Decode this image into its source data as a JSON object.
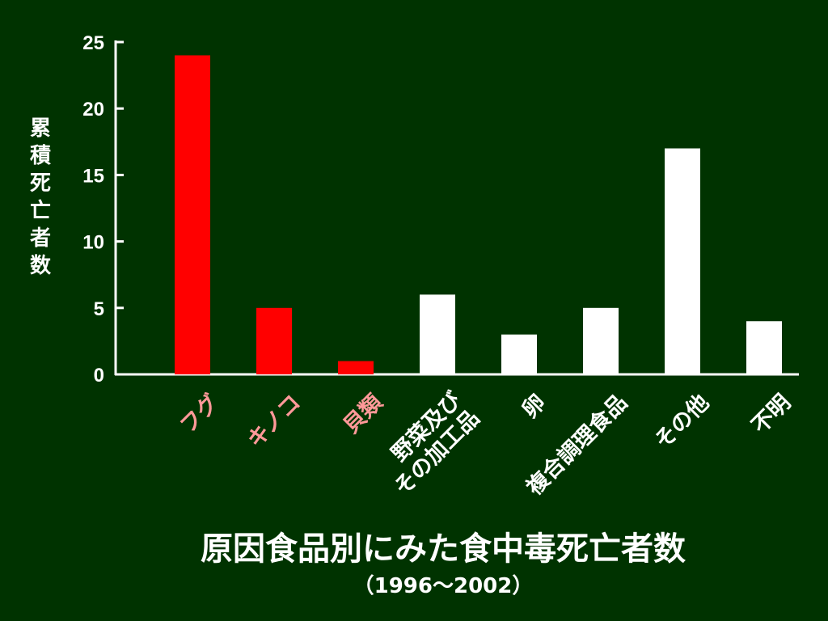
{
  "chart_data": {
    "type": "bar",
    "title": "原因食品別にみた食中毒死亡者数",
    "subtitle": "（1996～2002）",
    "ylabel": "累積死亡者数",
    "xlabel": "",
    "ylim": [
      0,
      25
    ],
    "yticks": [
      0,
      5,
      10,
      15,
      20,
      25
    ],
    "grid": false,
    "categories": [
      [
        "フグ"
      ],
      [
        "キノコ"
      ],
      [
        "貝類"
      ],
      [
        "野菜及び",
        "その加工品"
      ],
      [
        "卵"
      ],
      [
        "複合調理食品"
      ],
      [
        "その他"
      ],
      [
        "不明"
      ]
    ],
    "values": [
      24,
      5,
      1,
      6,
      3,
      5,
      17,
      4
    ],
    "bar_colors": [
      "#ff0000",
      "#ff0000",
      "#ff0000",
      "#ffffff",
      "#ffffff",
      "#ffffff",
      "#ffffff",
      "#ffffff"
    ],
    "label_colors": [
      "#ff9999",
      "#ff9999",
      "#ff9999",
      "#ffffff",
      "#ffffff",
      "#ffffff",
      "#ffffff",
      "#ffffff"
    ]
  },
  "colors": {
    "background": "#003300",
    "axis": "#ffffff"
  }
}
